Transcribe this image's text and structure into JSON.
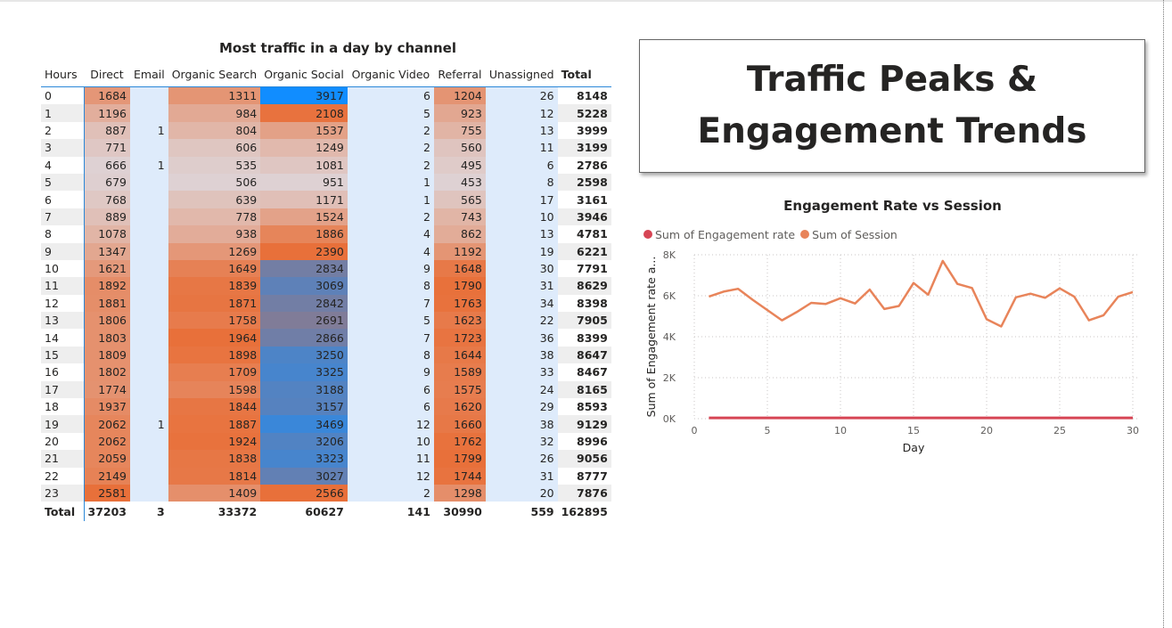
{
  "colors": {
    "header_accent": "#2b88d8",
    "heat_high": "#e8703a",
    "heat_low": "#ded1d3",
    "heat_bg": "#deebfb",
    "social_low": "#e8703a",
    "social_high": "#118dff",
    "engagement_series": "#d64554",
    "session_series": "#e8845a"
  },
  "chart_data": [
    {
      "type": "table",
      "title": "Most traffic in a day by channel",
      "columns": [
        "Hours",
        "Direct",
        "Email",
        "Organic Search",
        "Organic Social",
        "Organic Video",
        "Referral",
        "Unassigned",
        "Total"
      ],
      "rows": [
        [
          "0",
          "1684",
          "",
          "1311",
          "3917",
          "6",
          "1204",
          "26",
          "8148"
        ],
        [
          "1",
          "1196",
          "",
          "984",
          "2108",
          "5",
          "923",
          "12",
          "5228"
        ],
        [
          "2",
          "887",
          "1",
          "804",
          "1537",
          "2",
          "755",
          "13",
          "3999"
        ],
        [
          "3",
          "771",
          "",
          "606",
          "1249",
          "2",
          "560",
          "11",
          "3199"
        ],
        [
          "4",
          "666",
          "1",
          "535",
          "1081",
          "2",
          "495",
          "6",
          "2786"
        ],
        [
          "5",
          "679",
          "",
          "506",
          "951",
          "1",
          "453",
          "8",
          "2598"
        ],
        [
          "6",
          "768",
          "",
          "639",
          "1171",
          "1",
          "565",
          "17",
          "3161"
        ],
        [
          "7",
          "889",
          "",
          "778",
          "1524",
          "2",
          "743",
          "10",
          "3946"
        ],
        [
          "8",
          "1078",
          "",
          "938",
          "1886",
          "4",
          "862",
          "13",
          "4781"
        ],
        [
          "9",
          "1347",
          "",
          "1269",
          "2390",
          "4",
          "1192",
          "19",
          "6221"
        ],
        [
          "10",
          "1621",
          "",
          "1649",
          "2834",
          "9",
          "1648",
          "30",
          "7791"
        ],
        [
          "11",
          "1892",
          "",
          "1839",
          "3069",
          "8",
          "1790",
          "31",
          "8629"
        ],
        [
          "12",
          "1881",
          "",
          "1871",
          "2842",
          "7",
          "1763",
          "34",
          "8398"
        ],
        [
          "13",
          "1806",
          "",
          "1758",
          "2691",
          "5",
          "1623",
          "22",
          "7905"
        ],
        [
          "14",
          "1803",
          "",
          "1964",
          "2866",
          "7",
          "1723",
          "36",
          "8399"
        ],
        [
          "15",
          "1809",
          "",
          "1898",
          "3250",
          "8",
          "1644",
          "38",
          "8647"
        ],
        [
          "16",
          "1802",
          "",
          "1709",
          "3325",
          "9",
          "1589",
          "33",
          "8467"
        ],
        [
          "17",
          "1774",
          "",
          "1598",
          "3188",
          "6",
          "1575",
          "24",
          "8165"
        ],
        [
          "18",
          "1937",
          "",
          "1844",
          "3157",
          "6",
          "1620",
          "29",
          "8593"
        ],
        [
          "19",
          "2062",
          "1",
          "1887",
          "3469",
          "12",
          "1660",
          "38",
          "9129"
        ],
        [
          "20",
          "2062",
          "",
          "1924",
          "3206",
          "10",
          "1762",
          "32",
          "8996"
        ],
        [
          "21",
          "2059",
          "",
          "1838",
          "3323",
          "11",
          "1799",
          "26",
          "9056"
        ],
        [
          "22",
          "2149",
          "",
          "1814",
          "3027",
          "12",
          "1744",
          "31",
          "8777"
        ],
        [
          "23",
          "2581",
          "",
          "1409",
          "2566",
          "2",
          "1298",
          "20",
          "7876"
        ]
      ],
      "totals": [
        "Total",
        "37203",
        "3",
        "33372",
        "60627",
        "141",
        "30990",
        "559",
        "162895"
      ]
    },
    {
      "type": "line",
      "title": "Engagement Rate vs Session",
      "xlabel": "Day",
      "ylabel": "Sum of Engagement rate a...",
      "xlim": [
        0,
        30
      ],
      "ylim": [
        0,
        8000
      ],
      "x_ticks": [
        "0",
        "5",
        "10",
        "15",
        "20",
        "25",
        "30"
      ],
      "y_ticks": [
        "0K",
        "2K",
        "4K",
        "6K",
        "8K"
      ],
      "legend_position": "top-left",
      "grid": true,
      "x": [
        1,
        2,
        3,
        4,
        5,
        6,
        7,
        8,
        9,
        10,
        11,
        12,
        13,
        14,
        15,
        16,
        17,
        18,
        19,
        20,
        21,
        22,
        23,
        24,
        25,
        26,
        27,
        28,
        29,
        30
      ],
      "series": [
        {
          "name": "Sum of Engagement rate",
          "color": "#d64554",
          "values": [
            40,
            40,
            40,
            40,
            40,
            40,
            40,
            40,
            40,
            40,
            40,
            40,
            40,
            40,
            40,
            40,
            40,
            40,
            40,
            40,
            40,
            40,
            40,
            40,
            40,
            40,
            40,
            40,
            40,
            40
          ]
        },
        {
          "name": "Sum of Session",
          "color": "#e8845a",
          "values": [
            5960,
            6200,
            6340,
            5800,
            5300,
            4800,
            5200,
            5650,
            5600,
            5880,
            5620,
            6300,
            5350,
            5500,
            6620,
            6050,
            7700,
            6580,
            6380,
            4850,
            4500,
            5920,
            6100,
            5900,
            6360,
            5950,
            4800,
            5050,
            5950,
            6180
          ]
        }
      ]
    }
  ],
  "title_card": {
    "line1": "Traffic Peaks &",
    "line2": "Engagement Trends"
  }
}
